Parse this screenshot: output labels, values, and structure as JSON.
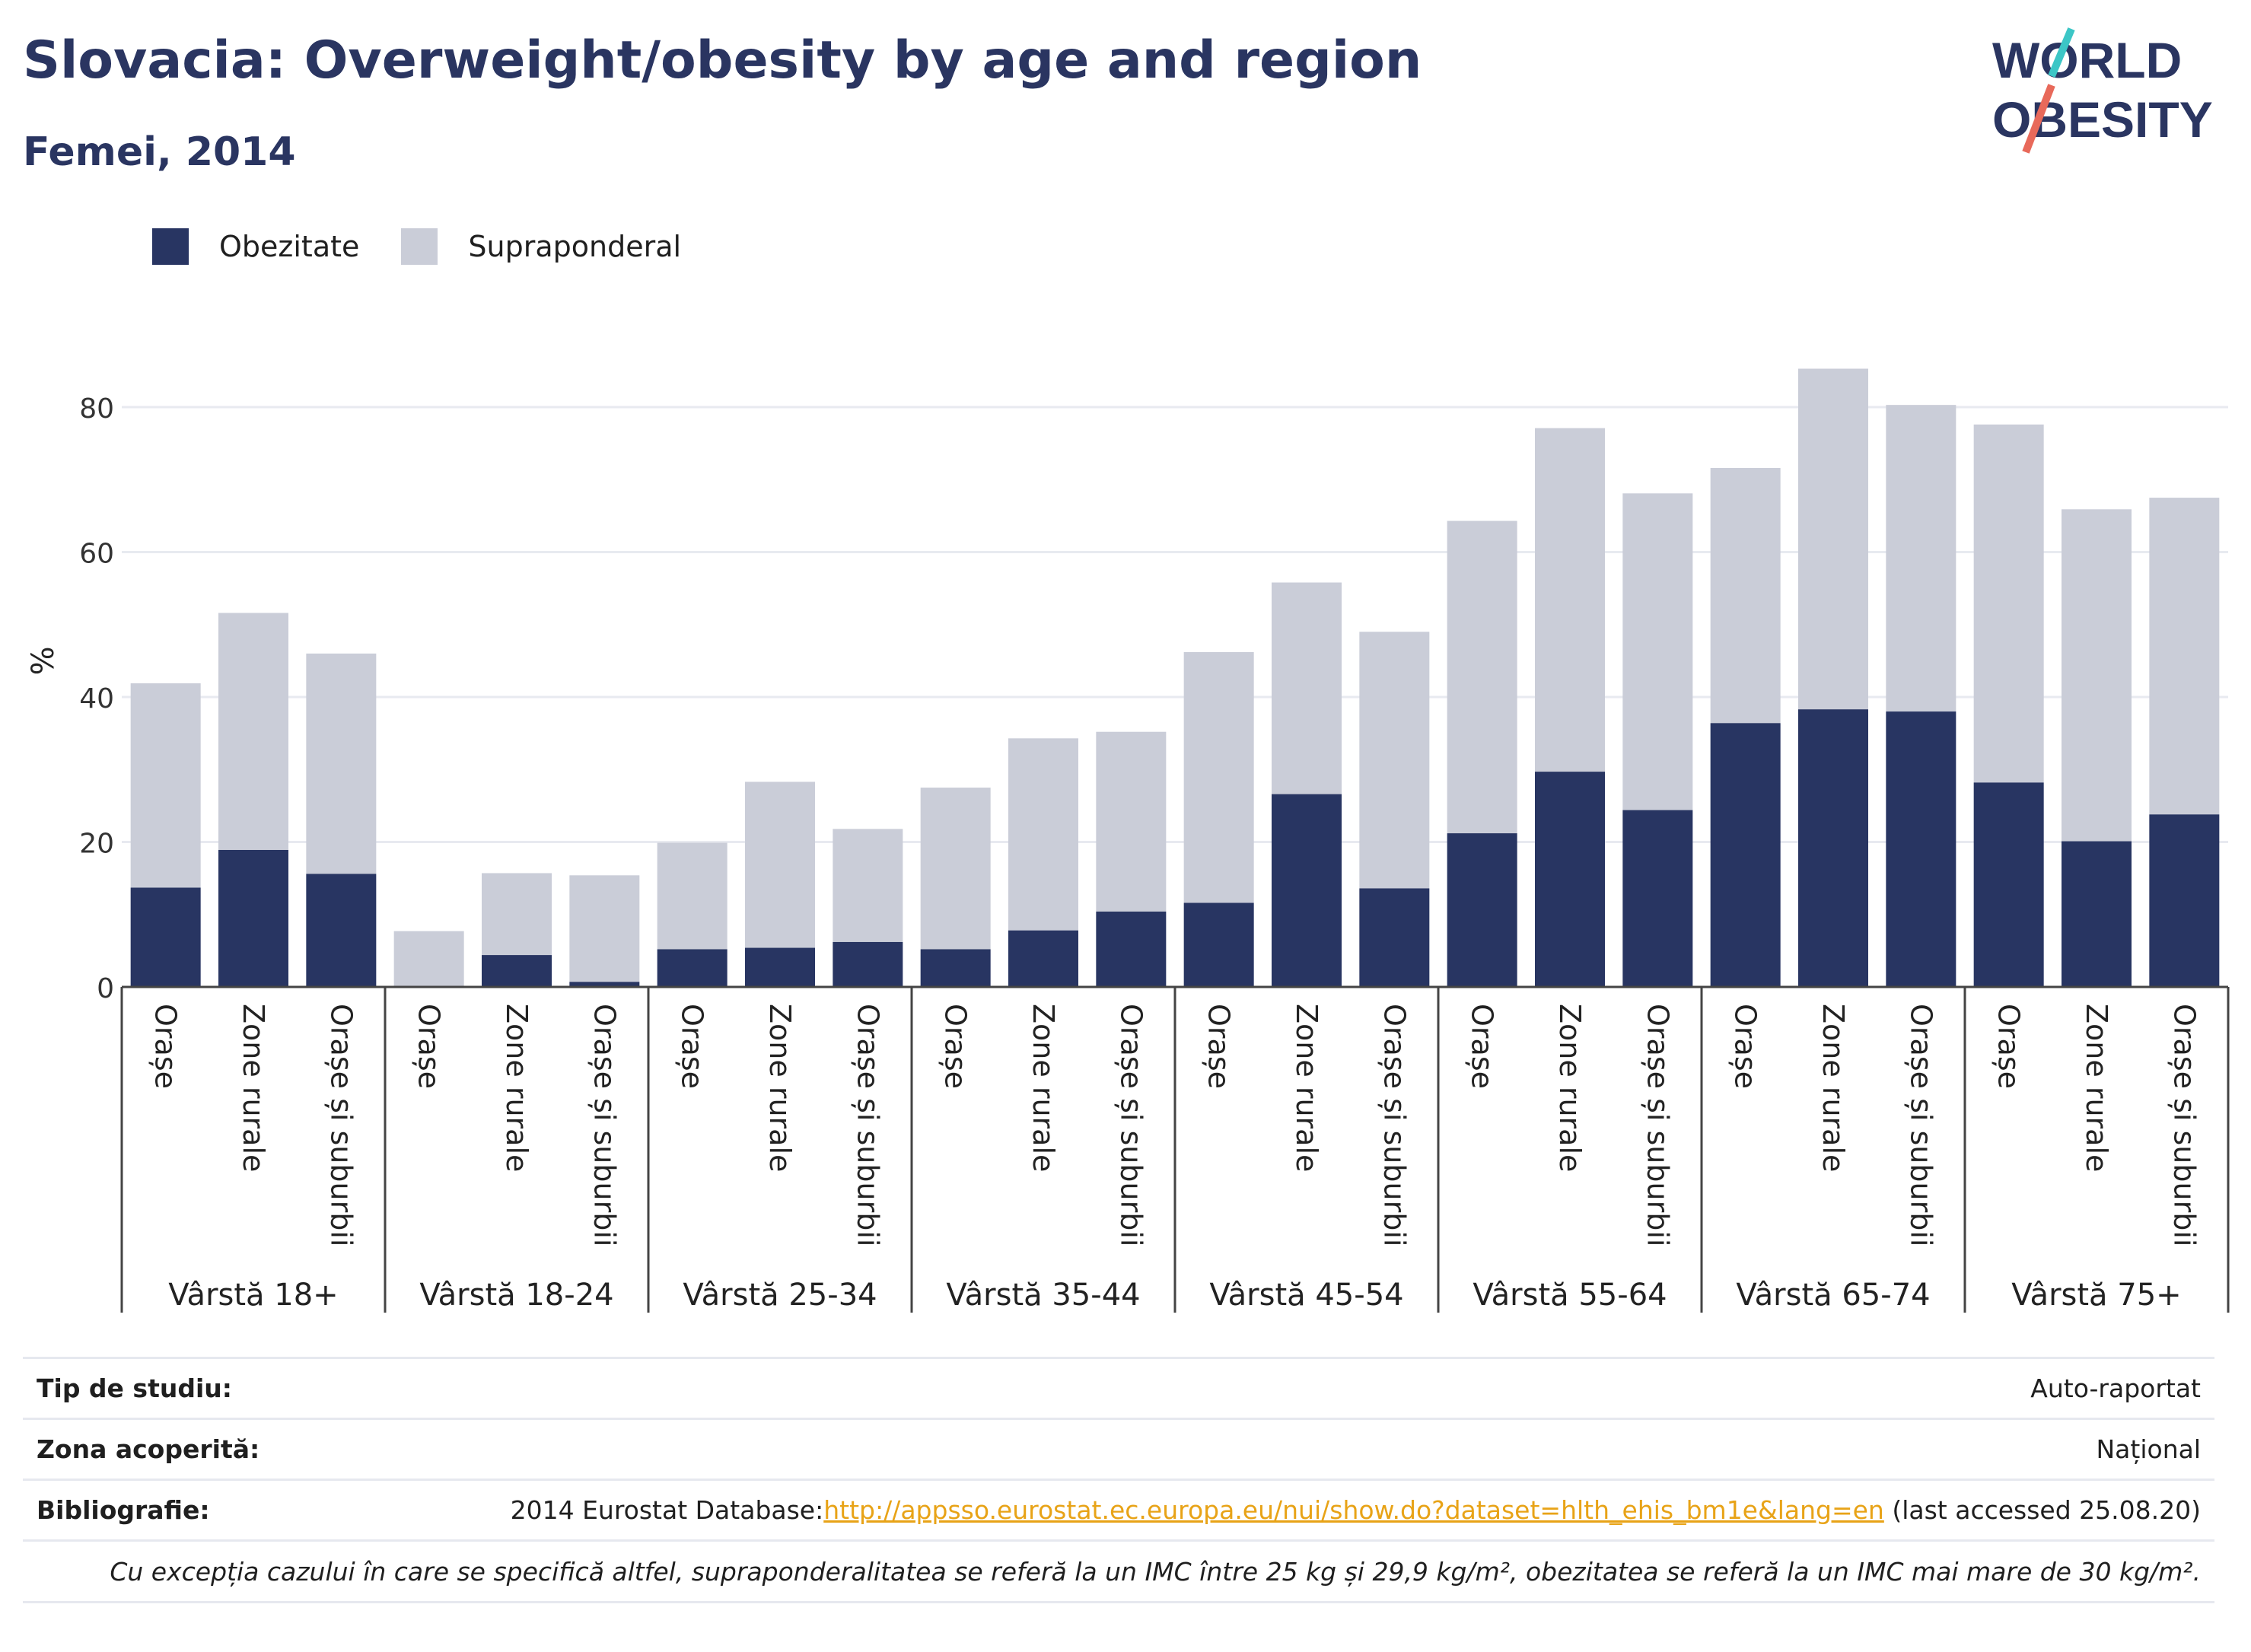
{
  "header": {
    "title": "Slovacia: Overweight/obesity by age and region",
    "subtitle": "Femei, 2014"
  },
  "logo": {
    "line1": "WORLD",
    "line2": "OBESITY",
    "accent_colors": [
      "#3cc6c6",
      "#e8695a"
    ]
  },
  "colors": {
    "obesity": "#283562",
    "overweight": "#cacdd8",
    "title": "#2a3561",
    "link": "#e8a317"
  },
  "chart_data": {
    "type": "bar",
    "stacked": true,
    "ylabel": "%",
    "ylim": [
      0,
      90
    ],
    "yticks": [
      0,
      20,
      40,
      60,
      80
    ],
    "grid": true,
    "legend_position": "top-left",
    "series": [
      {
        "name": "Obezitate",
        "color": "#283562"
      },
      {
        "name": "Supraponderal",
        "color": "#cacdd8"
      }
    ],
    "groups": [
      {
        "label": "Vârstă 18+",
        "bars": [
          {
            "label": "Orașe",
            "obesity": 13.7,
            "total": 41.9
          },
          {
            "label": "Zone rurale",
            "obesity": 18.9,
            "total": 51.6
          },
          {
            "label": "Orașe și suburbii",
            "obesity": 15.6,
            "total": 46.0
          }
        ]
      },
      {
        "label": "Vârstă 18-24",
        "bars": [
          {
            "label": "Orașe",
            "obesity": 0,
            "total": 7.7
          },
          {
            "label": "Zone rurale",
            "obesity": 4.4,
            "total": 15.7
          },
          {
            "label": "Orașe și suburbii",
            "obesity": 0.7,
            "total": 15.4
          }
        ]
      },
      {
        "label": "Vârstă 25-34",
        "bars": [
          {
            "label": "Orașe",
            "obesity": 5.2,
            "total": 19.9
          },
          {
            "label": "Zone rurale",
            "obesity": 5.4,
            "total": 28.3
          },
          {
            "label": "Orașe și suburbii",
            "obesity": 6.2,
            "total": 21.8
          }
        ]
      },
      {
        "label": "Vârstă 35-44",
        "bars": [
          {
            "label": "Orașe",
            "obesity": 5.2,
            "total": 27.5
          },
          {
            "label": "Zone rurale",
            "obesity": 7.8,
            "total": 34.3
          },
          {
            "label": "Orașe și suburbii",
            "obesity": 10.4,
            "total": 35.2
          }
        ]
      },
      {
        "label": "Vârstă 45-54",
        "bars": [
          {
            "label": "Orașe",
            "obesity": 11.6,
            "total": 46.2
          },
          {
            "label": "Zone rurale",
            "obesity": 26.6,
            "total": 55.8
          },
          {
            "label": "Orașe și suburbii",
            "obesity": 13.6,
            "total": 49.0
          }
        ]
      },
      {
        "label": "Vârstă 55-64",
        "bars": [
          {
            "label": "Orașe",
            "obesity": 21.2,
            "total": 64.3
          },
          {
            "label": "Zone rurale",
            "obesity": 29.7,
            "total": 77.1
          },
          {
            "label": "Orașe și suburbii",
            "obesity": 24.4,
            "total": 68.1
          }
        ]
      },
      {
        "label": "Vârstă 65-74",
        "bars": [
          {
            "label": "Orașe",
            "obesity": 36.4,
            "total": 71.6
          },
          {
            "label": "Zone rurale",
            "obesity": 38.3,
            "total": 85.3
          },
          {
            "label": "Orașe și suburbii",
            "obesity": 38.0,
            "total": 80.3
          }
        ]
      },
      {
        "label": "Vârstă 75+",
        "bars": [
          {
            "label": "Orașe",
            "obesity": 28.2,
            "total": 77.6
          },
          {
            "label": "Zone rurale",
            "obesity": 20.1,
            "total": 65.9
          },
          {
            "label": "Orașe și suburbii",
            "obesity": 23.8,
            "total": 67.5
          }
        ]
      }
    ]
  },
  "info": {
    "study_type_label": "Tip de studiu:",
    "study_type_value": "Auto-raportat",
    "coverage_label": "Zona acoperită:",
    "coverage_value": "Național",
    "bibliography_label": "Bibliografie:",
    "bibliography_prefix": "2014 Eurostat Database:",
    "bibliography_link": "http://appsso.eurostat.ec.europa.eu/nui/show.do?dataset=hlth_ehis_bm1e&lang=en",
    "bibliography_suffix": " (last accessed 25.08.20)",
    "note": "Cu excepția cazului în care se specifică altfel, supraponderalitatea se referă la un IMC între 25 kg și 29,9 kg/m², obezitatea se referă la un IMC mai mare de 30 kg/m²."
  }
}
